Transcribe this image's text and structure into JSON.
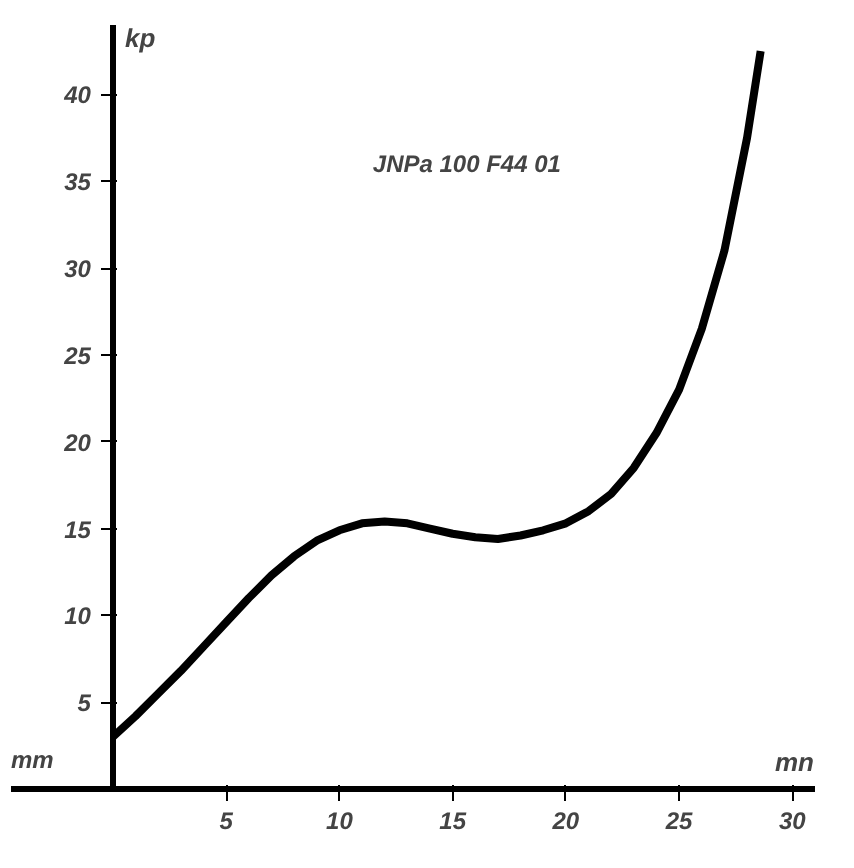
{
  "chart_data": {
    "type": "line",
    "xlabel": "mn",
    "ylabel": "kp",
    "annotations": [
      "JNPa 100 F44 01",
      "mm"
    ],
    "x": [
      0,
      1,
      2,
      3,
      4,
      5,
      6,
      7,
      8,
      9,
      10,
      11,
      12,
      13,
      14,
      15,
      16,
      17,
      18,
      19,
      20,
      21,
      22,
      23,
      24,
      25,
      26,
      27,
      28,
      28.6
    ],
    "series": [
      {
        "color": "#000000",
        "values": [
          3,
          4.2,
          5.5,
          6.8,
          8.2,
          9.6,
          11,
          12.3,
          13.4,
          14.3,
          14.9,
          15.3,
          15.4,
          15.3,
          15,
          14.7,
          14.5,
          14.4,
          14.6,
          14.9,
          15.3,
          16,
          17,
          18.5,
          20.5,
          23,
          26.5,
          31,
          37.5,
          42.5
        ]
      }
    ],
    "xlim": [
      -4.5,
      31
    ],
    "ylim": [
      0,
      44
    ],
    "xticks": [
      5,
      10,
      15,
      20,
      25,
      30
    ],
    "yticks": [
      5,
      10,
      15,
      20,
      25,
      30,
      35,
      40
    ],
    "grid": false,
    "marker": "none",
    "line_style": "solid"
  }
}
